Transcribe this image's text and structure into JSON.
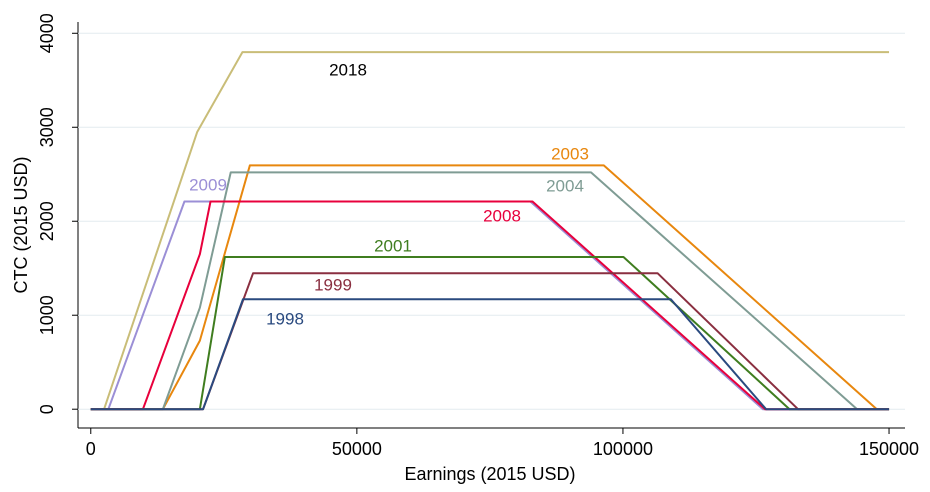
{
  "chart_data": {
    "type": "line",
    "x_label": "Earnings (2015 USD)",
    "y_label": "CTC (2015 USD)",
    "xlim": [
      -2400,
      153000
    ],
    "ylim": [
      -200,
      4120
    ],
    "xticks": [
      0,
      50000,
      100000,
      150000
    ],
    "yticks": [
      0,
      1000,
      2000,
      3000,
      4000
    ],
    "grid": true,
    "series": [
      {
        "name": "2018",
        "color": "#c9bd78",
        "x": [
          0,
          2500,
          20000,
          28500,
          150000
        ],
        "values": [
          0,
          0,
          2950,
          3800,
          3800
        ]
      },
      {
        "name": "2003",
        "color": "#e8870e",
        "x": [
          0,
          13550,
          20500,
          29900,
          96400,
          147700,
          150000
        ],
        "values": [
          0,
          0,
          730,
          2595,
          2595,
          0,
          0
        ]
      },
      {
        "name": "2004",
        "color": "#7f9c94",
        "x": [
          0,
          13550,
          20500,
          26300,
          94000,
          144000,
          150000
        ],
        "values": [
          0,
          0,
          1080,
          2520,
          2520,
          0,
          0
        ]
      },
      {
        "name": "2009",
        "color": "#9b8fd6",
        "x": [
          0,
          3300,
          17600,
          82600,
          126300,
          150000
        ],
        "values": [
          0,
          0,
          2210,
          2210,
          0,
          0
        ]
      },
      {
        "name": "2008",
        "color": "#e8003c",
        "x": [
          0,
          9800,
          20500,
          22500,
          83000,
          126700,
          150000
        ],
        "values": [
          0,
          0,
          1650,
          2210,
          2210,
          0,
          0
        ]
      },
      {
        "name": "2001",
        "color": "#3f7d1f",
        "x": [
          0,
          20500,
          25200,
          100100,
          131300,
          150000
        ],
        "values": [
          0,
          0,
          1620,
          1620,
          0,
          0
        ]
      },
      {
        "name": "1999",
        "color": "#8a2f40",
        "x": [
          0,
          21100,
          30500,
          106500,
          132900,
          150000
        ],
        "values": [
          0,
          0,
          1447,
          1447,
          0,
          0
        ]
      },
      {
        "name": "1998",
        "color": "#2a4a7f",
        "x": [
          0,
          21100,
          28600,
          109000,
          126900,
          150000
        ],
        "values": [
          0,
          0,
          1170,
          1170,
          0,
          0
        ]
      }
    ]
  }
}
